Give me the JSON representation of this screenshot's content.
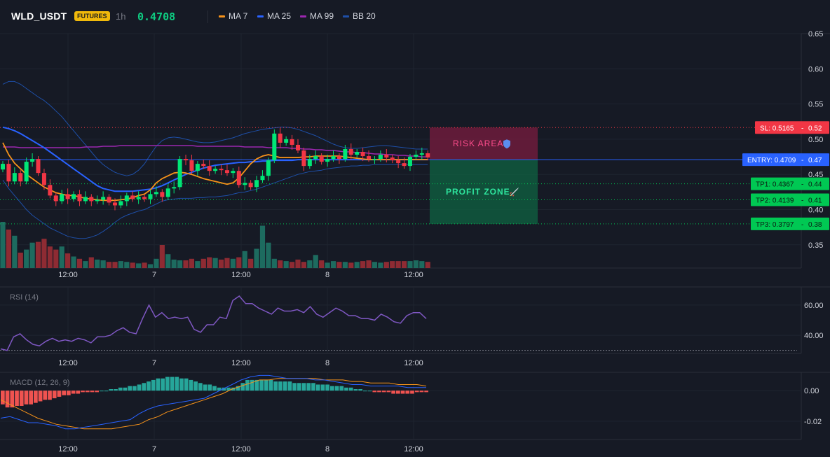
{
  "header": {
    "symbol": "WLD_USDT",
    "badge": "FUTURES",
    "timeframe": "1h",
    "price": "0.4708",
    "legend": [
      {
        "label": "MA 7",
        "color": "#f7931a"
      },
      {
        "label": "MA 25",
        "color": "#2962ff"
      },
      {
        "label": "MA 99",
        "color": "#9c27b0"
      },
      {
        "label": "BB 20",
        "color": "#1e4fa8"
      }
    ]
  },
  "colors": {
    "up": "#26a69a",
    "up_bright": "#00e676",
    "down": "#ef5350",
    "down_bright": "#f23645",
    "background": "#161a25",
    "grid": "#1f2430",
    "sl": "#f23645",
    "entry": "#2962ff",
    "tp": "#00c853"
  },
  "x_axis": {
    "labels": [
      "12:00",
      "7",
      "12:00",
      "8",
      "12:00"
    ]
  },
  "trade": {
    "risk_label": "RISK AREA",
    "risk_icon": "shield-icon",
    "profit_label": "PROFIT ZONE",
    "profit_icon": "rocket-icon",
    "sl_tag": "SL: 0.5165",
    "sl_price": "0.52",
    "entry_tag": "ENTRY: 0.4709",
    "entry_price": "0.47",
    "tp1_tag": "TP1: 0.4367",
    "tp1_price": "0.44",
    "tp2_tag": "TP2: 0.4139",
    "tp2_price": "0.41",
    "tp3_tag": "TP3: 0.3797",
    "tp3_price": "0.38"
  },
  "chart_data": [
    {
      "type": "candlestick",
      "title": "WLD_USDT 1h",
      "y_ticks": [
        "0.65",
        "0.60",
        "0.55",
        "0.50",
        "0.45",
        "0.40",
        "0.35"
      ],
      "ylim": [
        0.317,
        0.65
      ],
      "levels": {
        "sl": 0.5165,
        "entry": 0.4709,
        "tp1": 0.4367,
        "tp2": 0.4139,
        "tp3": 0.3797
      },
      "closes": [
        0.465,
        0.44,
        0.452,
        0.44,
        0.468,
        0.472,
        0.452,
        0.435,
        0.42,
        0.412,
        0.422,
        0.415,
        0.422,
        0.412,
        0.418,
        0.412,
        0.414,
        0.418,
        0.41,
        0.406,
        0.412,
        0.42,
        0.415,
        0.418,
        0.415,
        0.422,
        0.425,
        0.418,
        0.43,
        0.432,
        0.472,
        0.47,
        0.455,
        0.465,
        0.462,
        0.455,
        0.458,
        0.456,
        0.452,
        0.455,
        0.435,
        0.438,
        0.432,
        0.442,
        0.448,
        0.47,
        0.508,
        0.495,
        0.5,
        0.492,
        0.484,
        0.462,
        0.472,
        0.476,
        0.468,
        0.472,
        0.476,
        0.472,
        0.486,
        0.478,
        0.482,
        0.476,
        0.472,
        0.472,
        0.478,
        0.474,
        0.47,
        0.466,
        0.462,
        0.475,
        0.478,
        0.48,
        0.474
      ],
      "volumes": [
        60,
        50,
        42,
        20,
        24,
        33,
        34,
        38,
        28,
        24,
        28,
        19,
        15,
        12,
        9,
        14,
        11,
        10,
        8,
        8,
        9,
        8,
        7,
        6,
        7,
        5,
        12,
        30,
        18,
        11,
        10,
        10,
        12,
        9,
        12,
        14,
        13,
        11,
        13,
        12,
        14,
        22,
        12,
        25,
        55,
        33,
        12,
        10,
        9,
        8,
        11,
        8,
        10,
        17,
        10,
        7,
        9,
        8,
        8,
        7,
        8,
        9,
        10,
        8,
        7,
        8,
        9,
        9,
        9,
        9,
        10,
        9,
        8
      ],
      "ma7": [
        0.495,
        0.478,
        0.466,
        0.458,
        0.45,
        0.444,
        0.438,
        0.432,
        0.428,
        0.424,
        0.422,
        0.42,
        0.42,
        0.418,
        0.416,
        0.415,
        0.414,
        0.413,
        0.413,
        0.413,
        0.414,
        0.415,
        0.417,
        0.42,
        0.422,
        0.428,
        0.438,
        0.444,
        0.448,
        0.452,
        0.453,
        0.452,
        0.45,
        0.447,
        0.444,
        0.442,
        0.44,
        0.438,
        0.436,
        0.438,
        0.445,
        0.455,
        0.465,
        0.472,
        0.476,
        0.478,
        0.476,
        0.474,
        0.474,
        0.474,
        0.474,
        0.475,
        0.475,
        0.476,
        0.476,
        0.476,
        0.476,
        0.476,
        0.475,
        0.474,
        0.473,
        0.472,
        0.471,
        0.471,
        0.471,
        0.471,
        0.471,
        0.471,
        0.471,
        0.471,
        0.471,
        0.471,
        0.471
      ],
      "ma25": [
        0.517,
        0.515,
        0.512,
        0.508,
        0.503,
        0.498,
        0.493,
        0.488,
        0.482,
        0.476,
        0.47,
        0.464,
        0.458,
        0.452,
        0.446,
        0.44,
        0.434,
        0.43,
        0.428,
        0.426,
        0.426,
        0.426,
        0.426,
        0.427,
        0.428,
        0.429,
        0.431,
        0.434,
        0.438,
        0.442,
        0.446,
        0.45,
        0.453,
        0.456,
        0.459,
        0.461,
        0.463,
        0.464,
        0.465,
        0.466,
        0.467,
        0.467,
        0.468,
        0.468,
        0.469,
        0.469,
        0.47,
        0.47,
        0.47,
        0.47,
        0.471,
        0.471,
        0.471,
        0.471,
        0.471,
        0.471,
        0.471,
        0.471,
        0.471,
        0.471,
        0.471,
        0.471,
        0.471,
        0.471,
        0.471,
        0.471,
        0.471,
        0.471,
        0.471,
        0.471,
        0.471,
        0.471,
        0.471
      ],
      "ma99": [
        0.489,
        0.489,
        0.489,
        0.488,
        0.488,
        0.488,
        0.488,
        0.488,
        0.488,
        0.488,
        0.488,
        0.488,
        0.488,
        0.488,
        0.489,
        0.489,
        0.489,
        0.49,
        0.49,
        0.49,
        0.491,
        0.491,
        0.491,
        0.491,
        0.491,
        0.491,
        0.491,
        0.491,
        0.491,
        0.491,
        0.491,
        0.491,
        0.491,
        0.49,
        0.49,
        0.49,
        0.49,
        0.49,
        0.49,
        0.49,
        0.49,
        0.489,
        0.489,
        0.489,
        0.489,
        0.488,
        0.488,
        0.488,
        0.488,
        0.487,
        0.487,
        0.486,
        0.486,
        0.485,
        0.485,
        0.484,
        0.484,
        0.483,
        0.482,
        0.482,
        0.481,
        0.481,
        0.48,
        0.479,
        0.479,
        0.478,
        0.478,
        0.477,
        0.477,
        0.476,
        0.476,
        0.475,
        0.475
      ],
      "bb_upper": [
        0.578,
        0.582,
        0.582,
        0.578,
        0.572,
        0.566,
        0.56,
        0.555,
        0.548,
        0.54,
        0.532,
        0.522,
        0.512,
        0.502,
        0.492,
        0.482,
        0.472,
        0.464,
        0.458,
        0.453,
        0.45,
        0.448,
        0.45,
        0.456,
        0.465,
        0.478,
        0.49,
        0.498,
        0.502,
        0.503,
        0.502,
        0.5,
        0.498,
        0.496,
        0.495,
        0.495,
        0.496,
        0.498,
        0.5,
        0.502,
        0.505,
        0.508,
        0.51,
        0.512,
        0.514,
        0.515,
        0.516,
        0.517,
        0.517,
        0.516,
        0.514,
        0.511,
        0.508,
        0.505,
        0.501,
        0.497,
        0.493,
        0.49,
        0.488,
        0.487,
        0.487,
        0.488,
        0.489,
        0.49,
        0.491,
        0.491,
        0.49,
        0.489,
        0.488,
        0.487,
        0.486,
        0.486,
        0.486
      ],
      "bb_lower": [
        0.442,
        0.43,
        0.42,
        0.41,
        0.4,
        0.392,
        0.386,
        0.38,
        0.374,
        0.37,
        0.366,
        0.362,
        0.36,
        0.359,
        0.359,
        0.361,
        0.364,
        0.369,
        0.375,
        0.382,
        0.388,
        0.392,
        0.395,
        0.398,
        0.4,
        0.404,
        0.408,
        0.412,
        0.414,
        0.415,
        0.416,
        0.416,
        0.416,
        0.417,
        0.417,
        0.418,
        0.418,
        0.419,
        0.42,
        0.422,
        0.424,
        0.425,
        0.427,
        0.429,
        0.432,
        0.435,
        0.438,
        0.441,
        0.444,
        0.447,
        0.45,
        0.452,
        0.454,
        0.455,
        0.456,
        0.458,
        0.459,
        0.46,
        0.461,
        0.462,
        0.462,
        0.463,
        0.463,
        0.464,
        0.464,
        0.464,
        0.464,
        0.464,
        0.464,
        0.464,
        0.464,
        0.464,
        0.464
      ]
    },
    {
      "type": "line",
      "title": "RSI (14)",
      "y_ticks": [
        "60.00",
        "40.00"
      ],
      "ylim": [
        28,
        72
      ],
      "reference": 30,
      "values": [
        31,
        30,
        39,
        41,
        37,
        34,
        33,
        36,
        38,
        36,
        37,
        36,
        38,
        37,
        35,
        39,
        39,
        40,
        43,
        45,
        42,
        41,
        51,
        60,
        52,
        55,
        51,
        52,
        51,
        52,
        44,
        42,
        47,
        47,
        52,
        51,
        63,
        66,
        61,
        61,
        58,
        56,
        54,
        58,
        56,
        56,
        57,
        55,
        59,
        54,
        52,
        55,
        58,
        56,
        53,
        53,
        51,
        51,
        50,
        54,
        52,
        49,
        48,
        53,
        55,
        55,
        51
      ]
    },
    {
      "type": "bar",
      "title": "MACD (12, 26, 9)",
      "y_ticks": [
        "0.00",
        "-0.02"
      ],
      "ylim": [
        -0.032,
        0.012
      ],
      "histogram": [
        -0.009,
        -0.011,
        -0.011,
        -0.01,
        -0.01,
        -0.009,
        -0.009,
        -0.008,
        -0.007,
        -0.006,
        -0.006,
        -0.005,
        -0.004,
        -0.003,
        -0.003,
        -0.002,
        -0.002,
        -0.001,
        -0.001,
        -0.001,
        -0.001,
        0.0,
        0.0,
        0.001,
        0.001,
        0.002,
        0.002,
        0.003,
        0.003,
        0.004,
        0.005,
        0.006,
        0.007,
        0.008,
        0.008,
        0.009,
        0.009,
        0.009,
        0.008,
        0.008,
        0.007,
        0.006,
        0.005,
        0.004,
        0.004,
        0.003,
        0.002,
        0.002,
        0.002,
        0.002,
        0.003,
        0.005,
        0.007,
        0.007,
        0.007,
        0.007,
        0.007,
        0.007,
        0.006,
        0.006,
        0.006,
        0.006,
        0.005,
        0.005,
        0.005,
        0.005,
        0.005,
        0.004,
        0.004,
        0.004,
        0.003,
        0.003,
        0.003,
        0.002,
        0.002,
        0.001,
        0.001,
        0.0,
        0.0,
        -0.001,
        -0.001,
        -0.001,
        -0.001,
        -0.002,
        -0.002,
        -0.002,
        -0.002,
        -0.002,
        -0.001,
        -0.001,
        -0.001
      ],
      "macd": [
        -0.018,
        -0.017,
        -0.019,
        -0.021,
        -0.021,
        -0.022,
        -0.023,
        -0.025,
        -0.025,
        -0.024,
        -0.023,
        -0.022,
        -0.021,
        -0.02,
        -0.019,
        -0.015,
        -0.012,
        -0.01,
        -0.009,
        -0.008,
        -0.007,
        -0.006,
        -0.005,
        -0.002,
        0.001,
        0.004,
        0.007,
        0.009,
        0.01,
        0.01,
        0.009,
        0.008,
        0.008,
        0.008,
        0.007,
        0.007,
        0.006,
        0.005,
        0.004,
        0.004,
        0.003,
        0.003,
        0.003,
        0.003,
        0.002,
        0.002,
        0.002
      ],
      "signal": [
        -0.006,
        -0.009,
        -0.012,
        -0.015,
        -0.018,
        -0.02,
        -0.022,
        -0.023,
        -0.024,
        -0.025,
        -0.025,
        -0.025,
        -0.025,
        -0.024,
        -0.023,
        -0.022,
        -0.019,
        -0.017,
        -0.014,
        -0.012,
        -0.01,
        -0.008,
        -0.006,
        -0.004,
        -0.002,
        0.001,
        0.003,
        0.005,
        0.007,
        0.007,
        0.008,
        0.008,
        0.008,
        0.008,
        0.008,
        0.007,
        0.007,
        0.007,
        0.006,
        0.006,
        0.005,
        0.005,
        0.005,
        0.004,
        0.004,
        0.004,
        0.003
      ]
    }
  ]
}
